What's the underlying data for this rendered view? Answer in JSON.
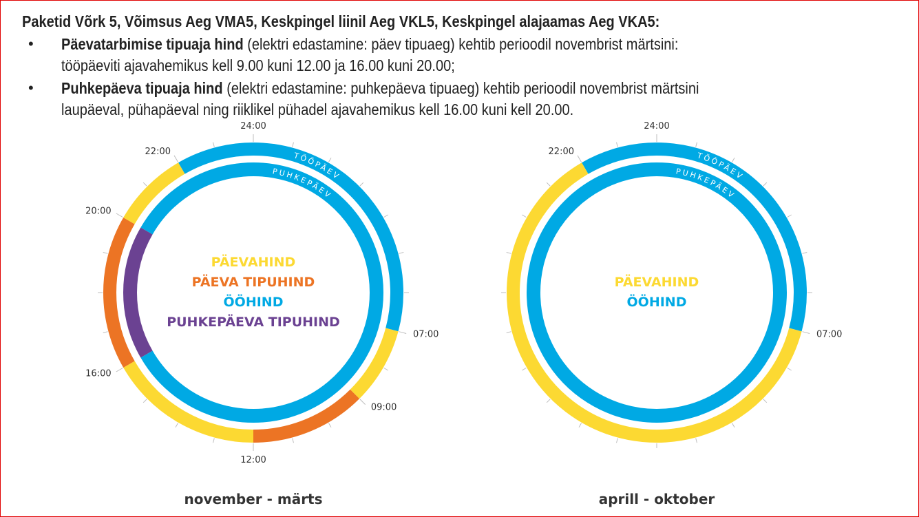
{
  "header": {
    "title": "Paketid Võrk 5, Võimsus Aeg VMA5, Keskpingel liinil Aeg VKL5, Keskpingel alajaamas Aeg VKA5:",
    "bullets": [
      {
        "bold": "Päevatarbimise tipuaja hind",
        "text1": " (elektri edastamine: päev tipuaeg) kehtib perioodil novembrist märtsini:",
        "text2": "tööpäeviti ajavahemikus kell 9.00 kuni 12.00 ja 16.00 kuni 20.00;"
      },
      {
        "bold": "Puhkepäeva tipuaja hind",
        "text1": " (elektri edastamine: puhkepäeva tipuaeg) kehtib perioodil novembrist märtsini",
        "text2": "laupäeval, pühapäeval ning riiklikel pühadel ajavahemikus kell 16.00 kuni kell 20.00."
      }
    ]
  },
  "colors": {
    "paevahind": "#fcd932",
    "tipuhind": "#ec7424",
    "oohind": "#00a9e4",
    "puhke_tipuhind": "#6b4292"
  },
  "ring_labels": {
    "outer": "TÖÖPÄEV",
    "inner": "PUHKEPÄEV"
  },
  "clocks": [
    {
      "caption": "november - märts",
      "hour_labels": [
        {
          "h": 24,
          "text": "24:00"
        },
        {
          "h": 22,
          "text": "22:00"
        },
        {
          "h": 20,
          "text": "20:00"
        },
        {
          "h": 16,
          "text": "16:00"
        },
        {
          "h": 12,
          "text": "12:00"
        },
        {
          "h": 9,
          "text": "09:00"
        },
        {
          "h": 7,
          "text": "07:00"
        }
      ],
      "outer": [
        {
          "from": 22,
          "to": 31,
          "c": "oohind"
        },
        {
          "from": 7,
          "to": 9,
          "c": "paevahind"
        },
        {
          "from": 9,
          "to": 12,
          "c": "tipuhind"
        },
        {
          "from": 12,
          "to": 16,
          "c": "paevahind"
        },
        {
          "from": 16,
          "to": 20,
          "c": "tipuhind"
        },
        {
          "from": 20,
          "to": 22,
          "c": "paevahind"
        }
      ],
      "inner": [
        {
          "from": 20,
          "to": 40,
          "c": "oohind"
        },
        {
          "from": 16,
          "to": 20,
          "c": "puhke_tipuhind"
        }
      ],
      "legend": [
        {
          "text": "PÄEVAHIND",
          "c": "paevahind"
        },
        {
          "text": "PÄEVA TIPUHIND",
          "c": "tipuhind"
        },
        {
          "text": "ÖÖHIND",
          "c": "oohind"
        },
        {
          "text": "PUHKEPÄEVA TIPUHIND",
          "c": "puhke_tipuhind"
        }
      ]
    },
    {
      "caption": "aprill - oktober",
      "hour_labels": [
        {
          "h": 24,
          "text": "24:00"
        },
        {
          "h": 22,
          "text": "22:00"
        },
        {
          "h": 7,
          "text": "07:00"
        }
      ],
      "outer": [
        {
          "from": 22,
          "to": 31,
          "c": "oohind"
        },
        {
          "from": 7,
          "to": 22,
          "c": "paevahind"
        }
      ],
      "inner": [
        {
          "from": 0,
          "to": 24,
          "c": "oohind"
        }
      ],
      "legend": [
        {
          "text": "PÄEVAHIND",
          "c": "paevahind"
        },
        {
          "text": "ÖÖHIND",
          "c": "oohind"
        }
      ]
    }
  ]
}
